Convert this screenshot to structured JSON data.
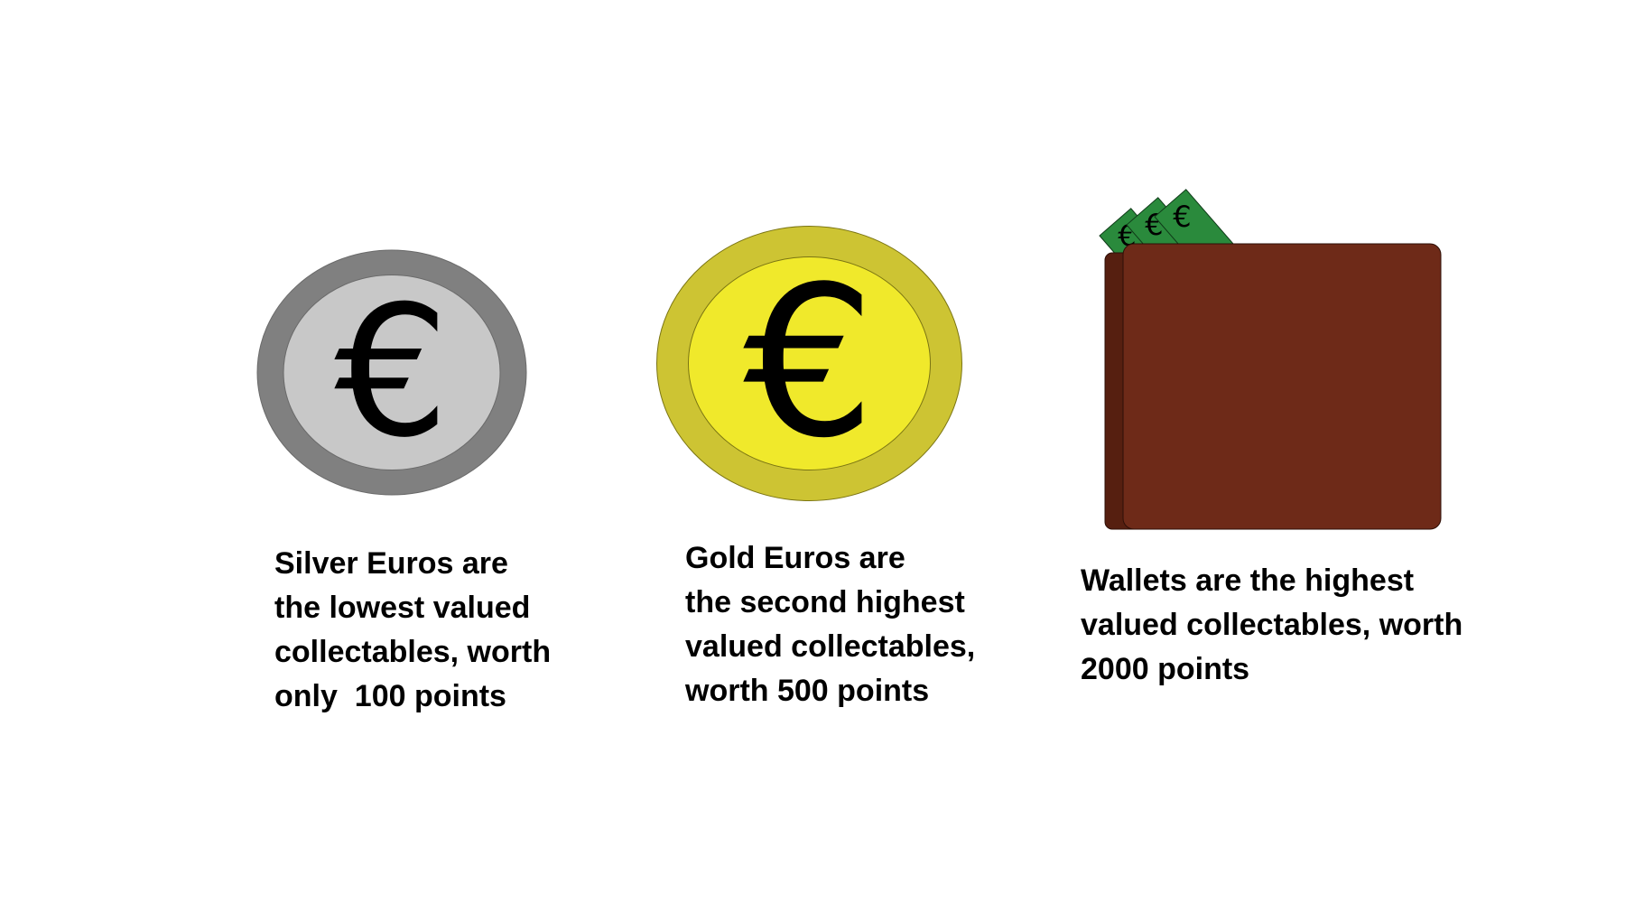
{
  "collectables": {
    "silver": {
      "symbol": "€",
      "caption_lines": [
        "Silver Euros are",
        "the lowest valued",
        "collectables, worth",
        "only  100 points"
      ],
      "colors": {
        "rim": "#808080",
        "face": "#c8c8c8",
        "outline": "#6a6a6a",
        "symbol": "#000000"
      }
    },
    "gold": {
      "symbol": "€",
      "caption_lines": [
        "Gold Euros are",
        "the second highest",
        "valued collectables,",
        "worth 500 points"
      ],
      "colors": {
        "rim": "#cdc433",
        "face": "#f0e92b",
        "outline": "#7a7412",
        "symbol": "#000000"
      }
    },
    "wallet": {
      "note_symbol": "€",
      "caption_lines": [
        "Wallets are the highest",
        "valued collectables, worth",
        "2000 points"
      ],
      "colors": {
        "body": "#6e2a18",
        "side": "#561f10",
        "note": "#2a8a3c",
        "note_outline": "#0f3a18"
      }
    }
  }
}
